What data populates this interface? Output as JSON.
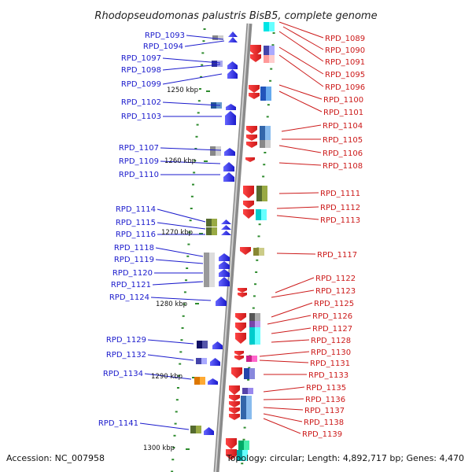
{
  "title": "Rhodopseudomonas palustris BisB5, complete genome",
  "footer": {
    "accession": "Accession: NC_007958",
    "summary": "Topology: circular; Length: 4,892,717 bp; Genes: 4,470"
  },
  "colors": {
    "forward": "#1a1acc",
    "reverse": "#cc1a1a",
    "backbone": "#888888"
  },
  "scale_labels": [
    "1250 kbp",
    "1260 kbp",
    "1270 kbp",
    "1280 kbp",
    "1290 kbp",
    "1300 kbp"
  ],
  "left_genes": [
    "RPD_1093",
    "RPD_1094",
    "RPD_1097",
    "RPD_1098",
    "RPD_1099",
    "RPD_1102",
    "RPD_1103",
    "RPD_1107",
    "RPD_1109",
    "RPD_1110",
    "RPD_1114",
    "RPD_1115",
    "RPD_1116",
    "RPD_1118",
    "RPD_1119",
    "RPD_1120",
    "RPD_1121",
    "RPD_1124",
    "RPD_1129",
    "RPD_1132",
    "RPD_1134",
    "RPD_1141"
  ],
  "right_genes": [
    "RPD_1089",
    "RPD_1090",
    "RPD_1091",
    "RPD_1095",
    "RPD_1096",
    "RPD_1100",
    "RPD_1101",
    "RPD_1104",
    "RPD_1105",
    "RPD_1106",
    "RPD_1108",
    "RPD_1111",
    "RPD_1112",
    "RPD_1113",
    "RPD_1117",
    "RPD_1122",
    "RPD_1123",
    "RPD_1125",
    "RPD_1126",
    "RPD_1127",
    "RPD_1128",
    "RPD_1130",
    "RPD_1131",
    "RPD_1133",
    "RPD_1135",
    "RPD_1136",
    "RPD_1137",
    "RPD_1138",
    "RPD_1139"
  ]
}
